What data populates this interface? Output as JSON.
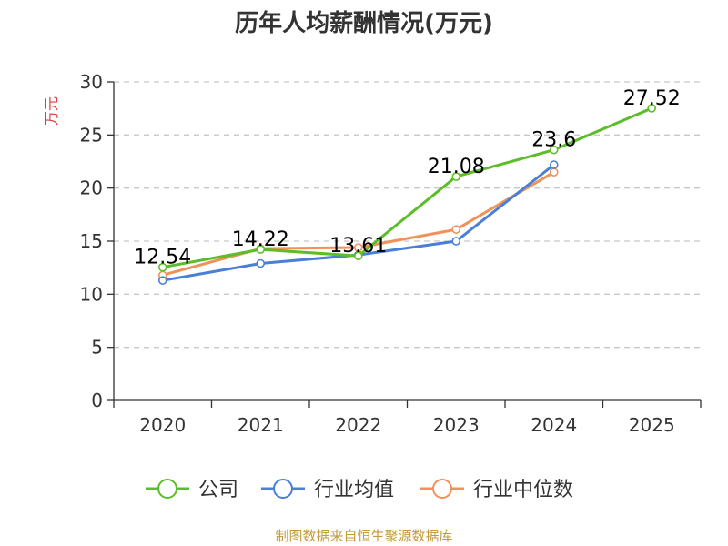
{
  "chart_data": {
    "type": "line",
    "title": "历年人均薪酬情况(万元)",
    "ylabel": "万元",
    "xlabel": "",
    "categories": [
      "2020",
      "2021",
      "2022",
      "2023",
      "2024",
      "2025"
    ],
    "ylim": [
      0,
      30
    ],
    "yticks": [
      0,
      5,
      10,
      15,
      20,
      25,
      30
    ],
    "grid": "horizontal-dashed",
    "series": [
      {
        "name": "公司",
        "color": "#5cbd2a",
        "values": [
          12.54,
          14.22,
          13.61,
          21.08,
          23.6,
          27.52
        ],
        "labels": [
          "12.54",
          "14.22",
          "13.61",
          "21.08",
          "23.6",
          "27.52"
        ]
      },
      {
        "name": "行业均值",
        "color": "#4a7fd8",
        "values": [
          11.3,
          12.9,
          13.7,
          15.0,
          22.2,
          null
        ]
      },
      {
        "name": "行业中位数",
        "color": "#f0915a",
        "values": [
          11.8,
          14.3,
          14.4,
          16.1,
          21.5,
          null
        ]
      }
    ],
    "legend_position": "bottom"
  },
  "source": "制图数据来自恒生聚源数据库"
}
